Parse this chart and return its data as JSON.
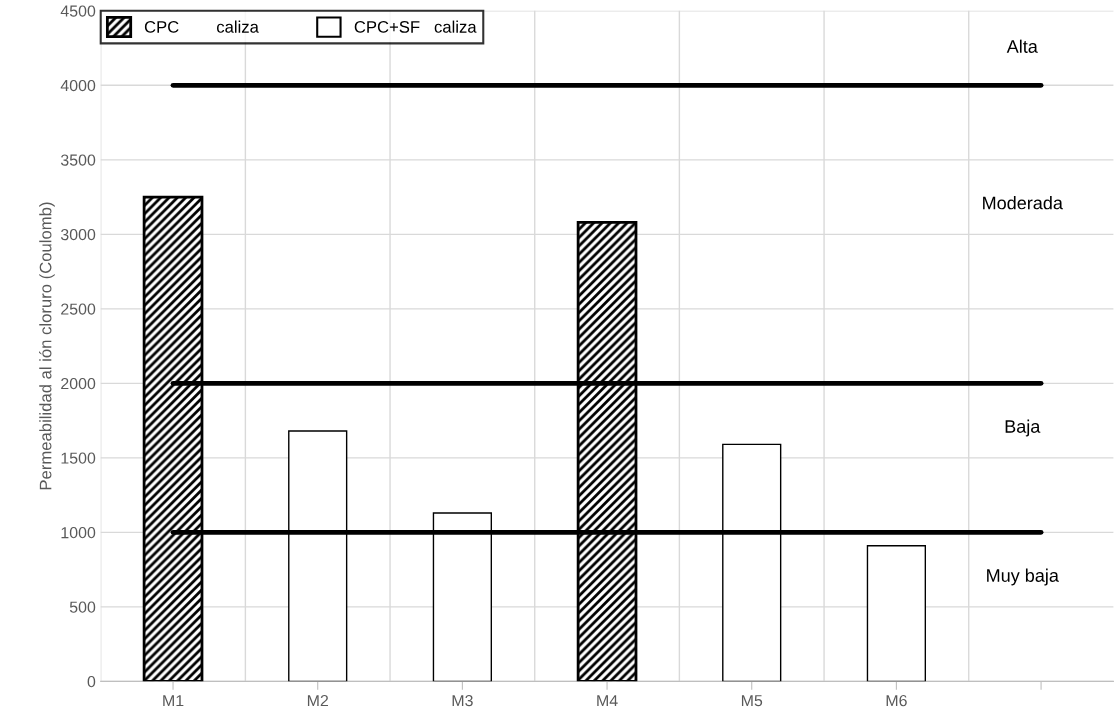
{
  "chart_data": {
    "type": "bar",
    "ylabel": "Permeabilidad al ión cloruro (Coulomb)",
    "categories": [
      "M1",
      "M2",
      "M3",
      "M4",
      "M5",
      "M6",
      null
    ],
    "series": [
      {
        "name": "CPC        caliza",
        "color": "#000000",
        "values": [
          3250,
          null,
          null,
          3080,
          null,
          null,
          null
        ]
      },
      {
        "name": "CPC+SF   caliza",
        "color": "#ffffff",
        "values": [
          null,
          1680,
          1130,
          null,
          1590,
          910,
          null
        ]
      },
      {
        "type": "line",
        "color": "#000000",
        "values": [
          4000,
          4000,
          4000,
          4000,
          4000,
          4000,
          4000
        ]
      },
      {
        "type": "line",
        "color": "#000000",
        "values": [
          2000,
          2000,
          2000,
          2000,
          2000,
          2000,
          2000
        ]
      },
      {
        "type": "line",
        "color": "#000000",
        "values": [
          1000,
          1000,
          1000,
          1000,
          1000,
          1000,
          1000
        ]
      }
    ],
    "ylim": [
      0,
      4500
    ],
    "yticks": [
      0,
      500,
      1000,
      1500,
      2000,
      2500,
      3000,
      3500,
      4000,
      4500
    ],
    "grid": true,
    "legend": "top left",
    "annotations": [
      "Alta",
      "Moderada",
      "Baja",
      "Muy baja"
    ]
  }
}
